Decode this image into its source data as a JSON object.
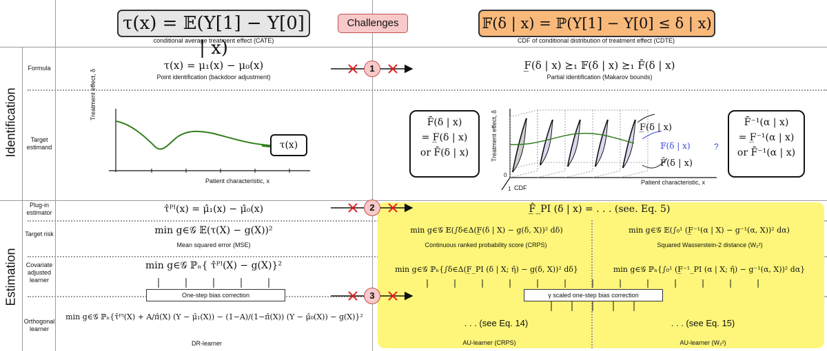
{
  "header": {
    "cate_formula": "τ(x) = 𝔼(Y[1] − Y[0] | x)",
    "cate_caption": "conditional average treatment effect (CATE)",
    "challenges": "Challenges",
    "cdte_formula": "𝔽(δ | x) = ℙ(Y[1] − Y[0] ≤ δ | x)",
    "cdte_caption": "CDF of conditional distribution of treatment effect (CDTE)"
  },
  "sections": {
    "identification": "Identification",
    "estimation": "Estimation"
  },
  "rows": {
    "formula": "Formula",
    "target_estimand": "Target estimand",
    "plugin": "Plug-in estimator",
    "target_risk": "Target risk",
    "covariate": "Covariate adjusted learner",
    "orthogonal": "Orthogonal learner"
  },
  "challenges": [
    "1",
    "2",
    "3"
  ],
  "left": {
    "formula": "τ(x) = μ₁(x) − μ₀(x)",
    "formula_caption": "Point identification (backdoor adjustment)",
    "ylabel": "Treatment effect, δ",
    "xlabel": "Patient characteristic, x",
    "curve_label": "τ(x)",
    "plugin": "τ̂ᴾᴵ(x) = μ̂₁(x) − μ̂₀(x)",
    "risk": "min g∈𝒢 𝔼(τ(X) − g(X))²",
    "risk_caption": "Mean squared error (MSE)",
    "covariate": "min g∈𝒢 ℙₙ{ τ̂ᴾᴵ(X) − g(X)}²",
    "bias": "One-step bias correction",
    "orthogonal": "min g∈𝒢 ℙₙ{τ̂ᴾᴵ(X) + A/π̂(X) (Y − μ̂₁(X)) − (1−A)/(1−π̂(X)) (Y − μ̂₀(X)) − g(X)}²",
    "orthogonal_caption": "DR-learner"
  },
  "right": {
    "formula": "F̲(δ | x) ⪰₁ 𝔽(δ | x) ⪰₁ F̄(δ | x)",
    "formula_caption": "Partial identification (Makarov bounds)",
    "box_left": [
      "F̄(δ | x)",
      "= F̲(δ | x)",
      "or F̄(δ | x)"
    ],
    "box_right": [
      "F̄⁻¹(α | x)",
      "= F̲⁻¹(α | x)",
      "or F̄⁻¹(α | x)"
    ],
    "ylabel": "Treatment effect, δ",
    "xlabel": "Patient characteristic, x",
    "cdf_label": "CDF",
    "axis_zero": "0",
    "axis_one": "1",
    "lbl_lower": "F̲(δ | x)",
    "lbl_mid": "𝔽(δ | x)",
    "lbl_q": "?",
    "lbl_upper": "F̄(δ | x)",
    "plugin": "F̲̂_PI (δ | x) = . . . (see. Eq. 5)",
    "crps_risk": "min g∈𝒢 𝔼(∫δ∈Δ(F̲(δ | X) − g(δ, X))² dδ)",
    "crps_caption": "Continuous ranked probability score (CRPS)",
    "w2_risk": "min g∈𝒢 𝔼(∫₀¹ (F̲⁻¹(α | X) − g⁻¹(α, X))² dα)",
    "w2_caption": "Squared Wasserstein-2 distance (W₂²)",
    "crps_cov": "min g∈𝒢 ℙₙ{∫δ∈Δ(F̲_PI (δ | X; η̂) − g(δ, X))² dδ}",
    "w2_cov": "min g∈𝒢 ℙₙ{∫₀¹ (F̲⁻¹_PI (α | X; η̂) − g⁻¹(α, X))² dα}",
    "bias": "γ scaled one-step bias correction",
    "crps_orth": ". . . (see Eq. 14)",
    "w2_orth": ". . . (see Eq. 15)",
    "crps_learner": "AU-learner (CRPS)",
    "w2_learner": "AU-learner (W₂²)"
  },
  "colors": {
    "cate_box": "#e6e6e6",
    "cdte_box": "#f9b97b",
    "challenge": "#f8c9c9",
    "highlight": "#fdf67a",
    "curve": "#2e7d1a",
    "cross": "#e0201c"
  }
}
